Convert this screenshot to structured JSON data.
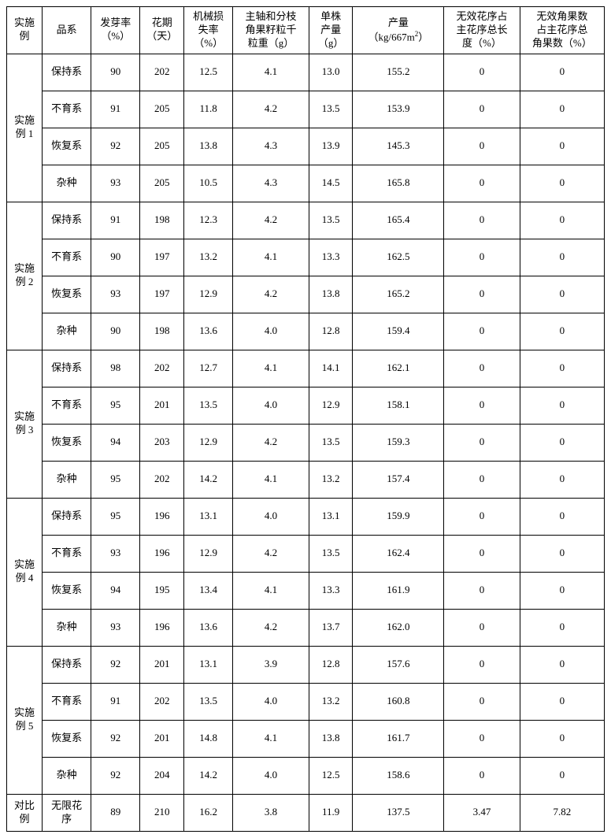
{
  "columns": [
    {
      "key": "c0",
      "label": "实施\n例"
    },
    {
      "key": "c1",
      "label": "品系"
    },
    {
      "key": "c2",
      "label": "发芽率\n（%）"
    },
    {
      "key": "c3",
      "label": "花期\n（天）"
    },
    {
      "key": "c4",
      "label": "机械损\n失率\n（%）"
    },
    {
      "key": "c5",
      "label": "主轴和分枝\n角果籽粒千\n粒重（g）"
    },
    {
      "key": "c6",
      "label": "单株\n产量\n（g）"
    },
    {
      "key": "c7",
      "label_html": "产量<br>（kg/667m<sup>2</sup>）"
    },
    {
      "key": "c8",
      "label": "无效花序占\n主花序总长\n度（%）"
    },
    {
      "key": "c9",
      "label": "无效角果数\n占主花序总\n角果数（%）"
    }
  ],
  "groups": [
    {
      "label": "实施\n例 1",
      "rows": [
        {
          "c1": "保持系",
          "c2": "90",
          "c3": "202",
          "c4": "12.5",
          "c5": "4.1",
          "c6": "13.0",
          "c7": "155.2",
          "c8": "0",
          "c9": "0"
        },
        {
          "c1": "不育系",
          "c2": "91",
          "c3": "205",
          "c4": "11.8",
          "c5": "4.2",
          "c6": "13.5",
          "c7": "153.9",
          "c8": "0",
          "c9": "0"
        },
        {
          "c1": "恢复系",
          "c2": "92",
          "c3": "205",
          "c4": "13.8",
          "c5": "4.3",
          "c6": "13.9",
          "c7": "145.3",
          "c8": "0",
          "c9": "0"
        },
        {
          "c1": "杂种",
          "c2": "93",
          "c3": "205",
          "c4": "10.5",
          "c5": "4.3",
          "c6": "14.5",
          "c7": "165.8",
          "c8": "0",
          "c9": "0"
        }
      ]
    },
    {
      "label": "实施\n例 2",
      "rows": [
        {
          "c1": "保持系",
          "c2": "91",
          "c3": "198",
          "c4": "12.3",
          "c5": "4.2",
          "c6": "13.5",
          "c7": "165.4",
          "c8": "0",
          "c9": "0"
        },
        {
          "c1": "不育系",
          "c2": "90",
          "c3": "197",
          "c4": "13.2",
          "c5": "4.1",
          "c6": "13.3",
          "c7": "162.5",
          "c8": "0",
          "c9": "0"
        },
        {
          "c1": "恢复系",
          "c2": "93",
          "c3": "197",
          "c4": "12.9",
          "c5": "4.2",
          "c6": "13.8",
          "c7": "165.2",
          "c8": "0",
          "c9": "0"
        },
        {
          "c1": "杂种",
          "c2": "90",
          "c3": "198",
          "c4": "13.6",
          "c5": "4.0",
          "c6": "12.8",
          "c7": "159.4",
          "c8": "0",
          "c9": "0"
        }
      ]
    },
    {
      "label": "实施\n例 3",
      "rows": [
        {
          "c1": "保持系",
          "c2": "98",
          "c3": "202",
          "c4": "12.7",
          "c5": "4.1",
          "c6": "14.1",
          "c7": "162.1",
          "c8": "0",
          "c9": "0"
        },
        {
          "c1": "不育系",
          "c2": "95",
          "c3": "201",
          "c4": "13.5",
          "c5": "4.0",
          "c6": "12.9",
          "c7": "158.1",
          "c8": "0",
          "c9": "0"
        },
        {
          "c1": "恢复系",
          "c2": "94",
          "c3": "203",
          "c4": "12.9",
          "c5": "4.2",
          "c6": "13.5",
          "c7": "159.3",
          "c8": "0",
          "c9": "0"
        },
        {
          "c1": "杂种",
          "c2": "95",
          "c3": "202",
          "c4": "14.2",
          "c5": "4.1",
          "c6": "13.2",
          "c7": "157.4",
          "c8": "0",
          "c9": "0"
        }
      ]
    },
    {
      "label": "实施\n例 4",
      "rows": [
        {
          "c1": "保持系",
          "c2": "95",
          "c3": "196",
          "c4": "13.1",
          "c5": "4.0",
          "c6": "13.1",
          "c7": "159.9",
          "c8": "0",
          "c9": "0"
        },
        {
          "c1": "不育系",
          "c2": "93",
          "c3": "196",
          "c4": "12.9",
          "c5": "4.2",
          "c6": "13.5",
          "c7": "162.4",
          "c8": "0",
          "c9": "0"
        },
        {
          "c1": "恢复系",
          "c2": "94",
          "c3": "195",
          "c4": "13.4",
          "c5": "4.1",
          "c6": "13.3",
          "c7": "161.9",
          "c8": "0",
          "c9": "0"
        },
        {
          "c1": "杂种",
          "c2": "93",
          "c3": "196",
          "c4": "13.6",
          "c5": "4.2",
          "c6": "13.7",
          "c7": "162.0",
          "c8": "0",
          "c9": "0"
        }
      ]
    },
    {
      "label": "实施\n例 5",
      "rows": [
        {
          "c1": "保持系",
          "c2": "92",
          "c3": "201",
          "c4": "13.1",
          "c5": "3.9",
          "c6": "12.8",
          "c7": "157.6",
          "c8": "0",
          "c9": "0"
        },
        {
          "c1": "不育系",
          "c2": "91",
          "c3": "202",
          "c4": "13.5",
          "c5": "4.0",
          "c6": "13.2",
          "c7": "160.8",
          "c8": "0",
          "c9": "0"
        },
        {
          "c1": "恢复系",
          "c2": "92",
          "c3": "201",
          "c4": "14.8",
          "c5": "4.1",
          "c6": "13.8",
          "c7": "161.7",
          "c8": "0",
          "c9": "0"
        },
        {
          "c1": "杂种",
          "c2": "92",
          "c3": "204",
          "c4": "14.2",
          "c5": "4.0",
          "c6": "12.5",
          "c7": "158.6",
          "c8": "0",
          "c9": "0"
        }
      ]
    },
    {
      "label": "对比\n例",
      "rows": [
        {
          "c1": "无限花\n序",
          "c2": "89",
          "c3": "210",
          "c4": "16.2",
          "c5": "3.8",
          "c6": "11.9",
          "c7": "137.5",
          "c8": "3.47",
          "c9": "7.82"
        }
      ]
    }
  ]
}
